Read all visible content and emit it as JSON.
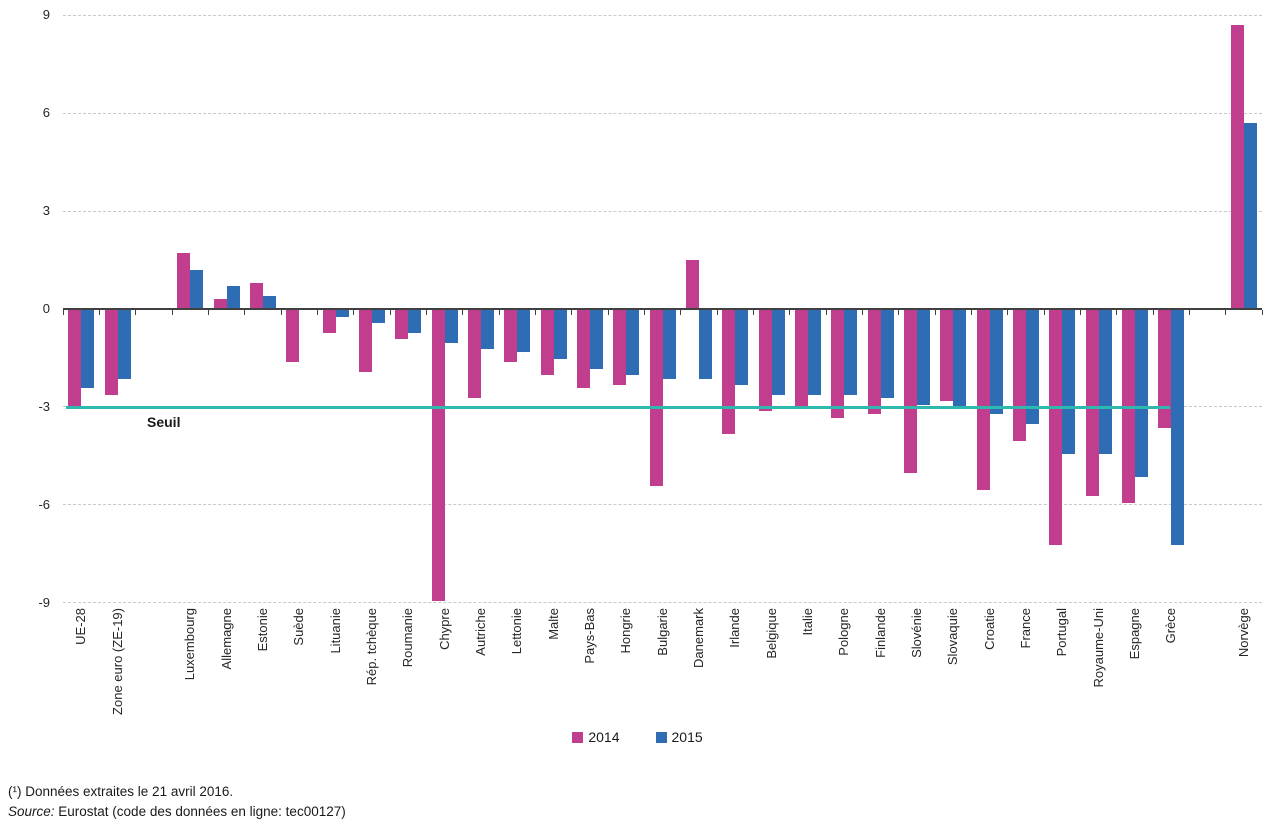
{
  "chart_data": {
    "type": "bar",
    "title": "",
    "ylabel": "",
    "xlabel": "",
    "ylim": [
      -9,
      9
    ],
    "yticks": [
      9,
      6,
      3,
      0,
      -3,
      -6,
      -9
    ],
    "grid": "horizontal dashed at yticks, solid axis at 0",
    "legend_position": "bottom-center",
    "categories": [
      "UE-28",
      "Zone euro (ZE-19)",
      "Luxembourg",
      "Allemagne",
      "Estonie",
      "Suède",
      "Lituanie",
      "Rép. tchèque",
      "Roumanie",
      "Chypre",
      "Autriche",
      "Lettonie",
      "Malte",
      "Pays-Bas",
      "Hongrie",
      "Bulgarie",
      "Danemark",
      "Irlande",
      "Belgique",
      "Italie",
      "Pologne",
      "Finlande",
      "Slovénie",
      "Slovaquie",
      "Croatie",
      "France",
      "Portugal",
      "Royaume-Uni",
      "Espagne",
      "Grèce",
      "Norvège"
    ],
    "gaps_after_index": [
      1,
      29
    ],
    "series": [
      {
        "name": "2014",
        "color": "#C13D8D",
        "values": [
          -3.0,
          -2.6,
          1.7,
          0.3,
          0.8,
          -1.6,
          -0.7,
          -1.9,
          -0.9,
          -8.9,
          -2.7,
          -1.6,
          -2.0,
          -2.4,
          -2.3,
          -5.4,
          1.5,
          -3.8,
          -3.1,
          -3.0,
          -3.3,
          -3.2,
          -5.0,
          -2.8,
          -5.5,
          -4.0,
          -7.2,
          -5.7,
          -5.9,
          -3.6,
          8.7
        ]
      },
      {
        "name": "2015",
        "color": "#2E6DB4",
        "values": [
          -2.4,
          -2.1,
          1.2,
          0.7,
          0.4,
          0.0,
          -0.2,
          -0.4,
          -0.7,
          -1.0,
          -1.2,
          -1.3,
          -1.5,
          -1.8,
          -2.0,
          -2.1,
          -2.1,
          -2.3,
          -2.6,
          -2.6,
          -2.6,
          -2.7,
          -2.9,
          -3.0,
          -3.2,
          -3.5,
          -4.4,
          -4.4,
          -5.1,
          -7.2,
          5.7
        ]
      }
    ],
    "threshold": {
      "value": -3,
      "label": "Seuil",
      "color": "#2FB8AE"
    }
  },
  "footer": {
    "note": "(¹) Données extraites le 21 avril 2016.",
    "source_prefix": "Source:",
    "source_rest": " Eurostat (code des données en ligne: tec00127)"
  }
}
